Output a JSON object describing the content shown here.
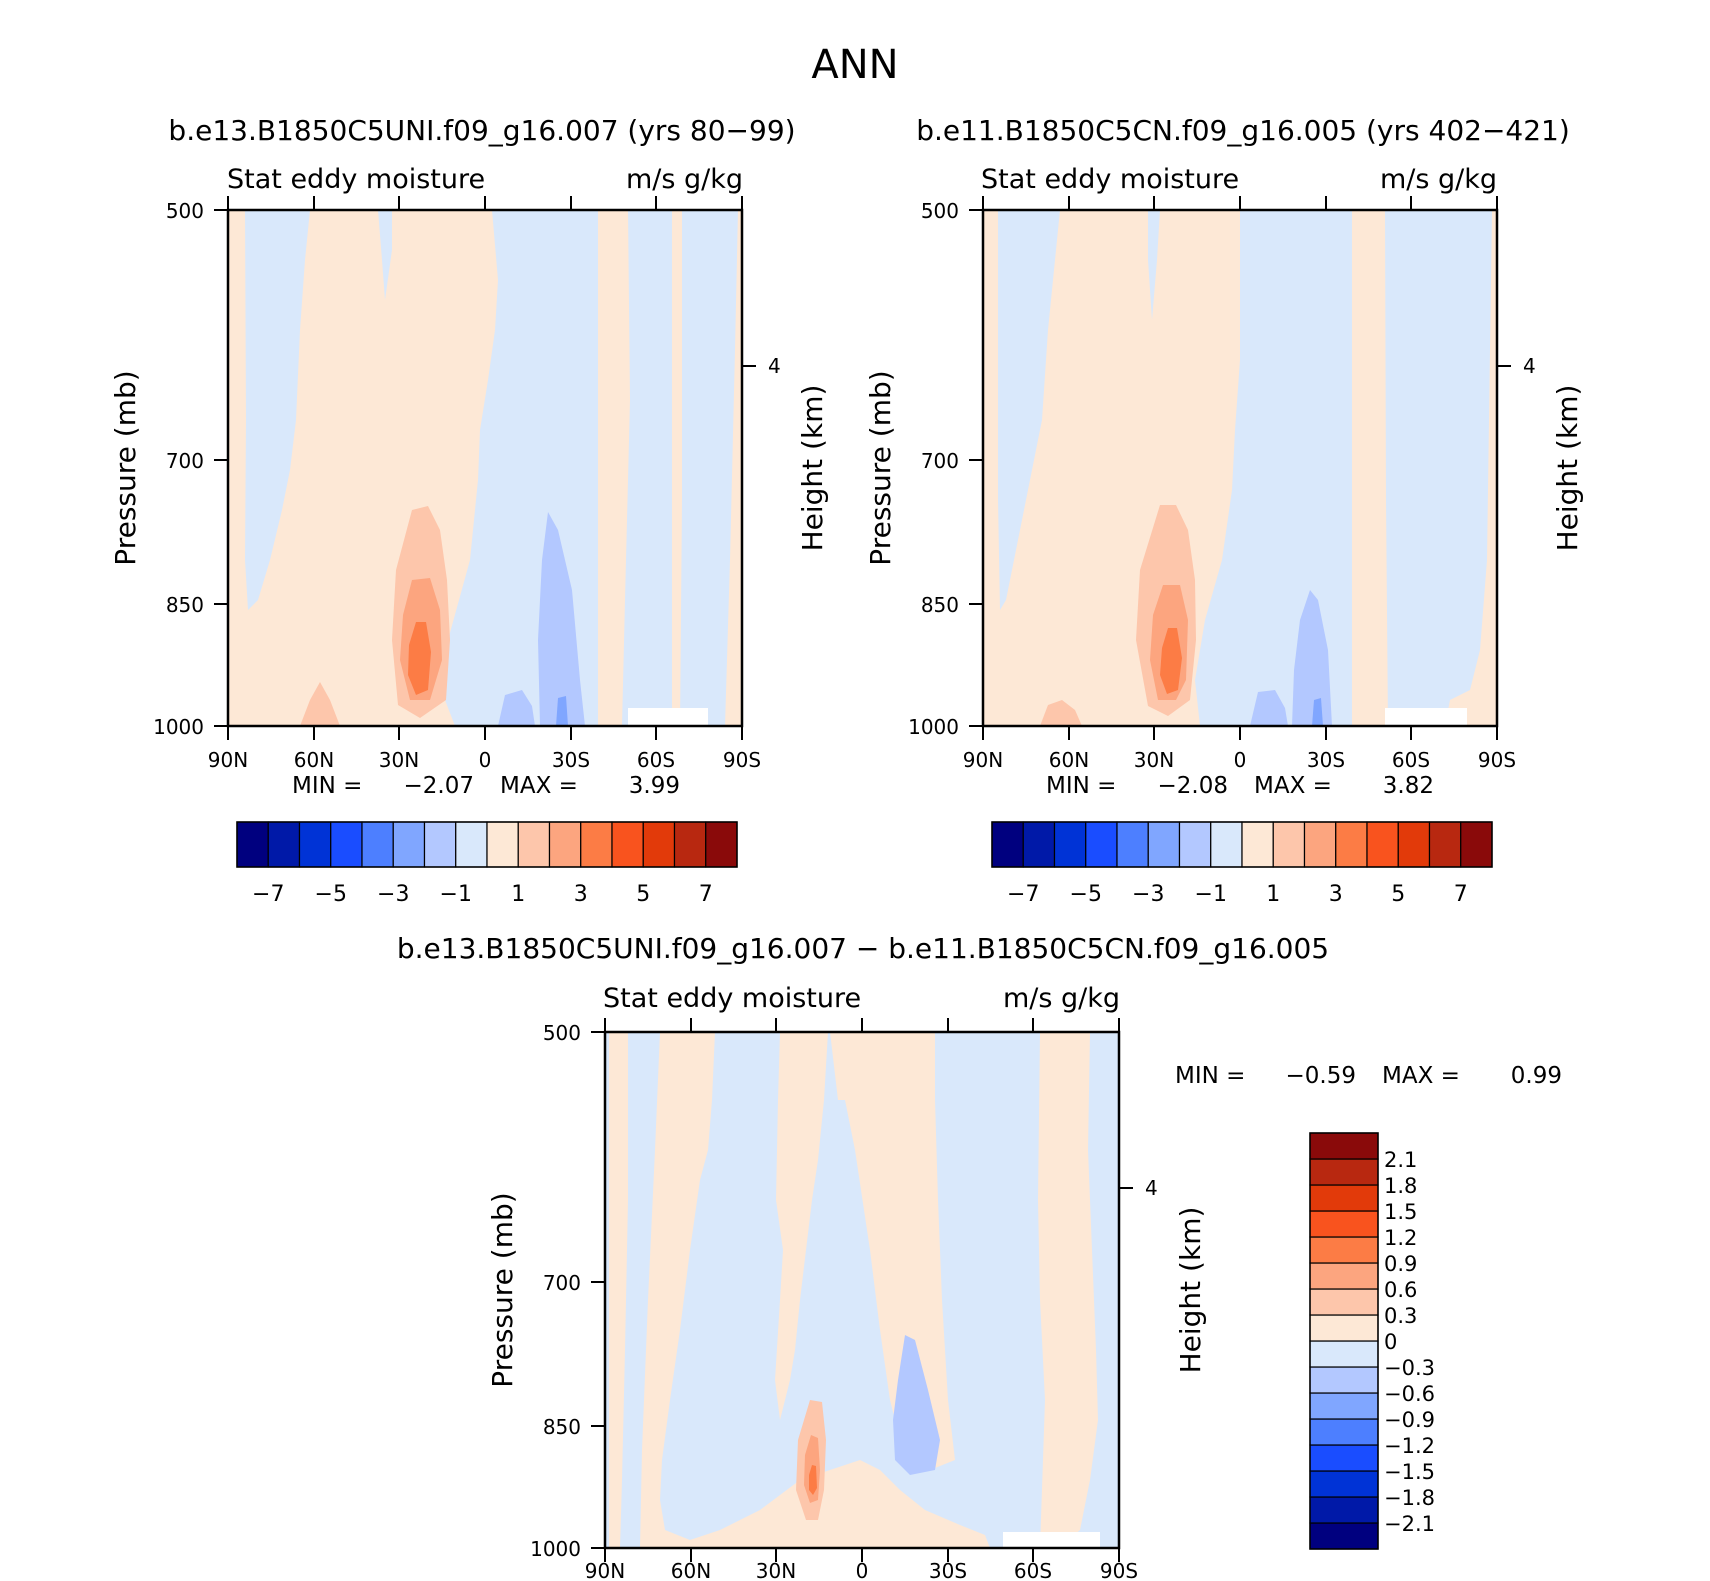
{
  "figure": {
    "title": "ANN"
  },
  "chart_data": [
    {
      "type": "heatmap",
      "title": "b.e13.B1850C5UNI.f09_g16.007 (yrs 80−99)",
      "left_label": "Stat eddy moisture",
      "right_label": "m/s g/kg",
      "xlabel": "",
      "ylabel": "Pressure (mb)",
      "ylabel_right": "Height (km)",
      "x_ticks": [
        "90N",
        "60N",
        "30N",
        "0",
        "30S",
        "60S",
        "90S"
      ],
      "y_ticks": [
        "500",
        "700",
        "850",
        "1000"
      ],
      "y_ticks_right": [
        "4"
      ],
      "xlim": [
        90,
        -90
      ],
      "ylim": [
        1000,
        500
      ],
      "min_text": "MIN =",
      "min_value": "−2.07",
      "max_text": "MAX =",
      "max_value": "3.99",
      "colorbar": {
        "orientation": "horizontal",
        "levels": [
          -7,
          -6,
          -5,
          -4,
          -3,
          -2,
          -1,
          0,
          1,
          2,
          3,
          4,
          5,
          6,
          7
        ],
        "tick_labels": [
          "−7",
          "−5",
          "−3",
          "−1",
          "1",
          "3",
          "5",
          "7"
        ],
        "colors": [
          "#00007f",
          "#0019a8",
          "#0033d6",
          "#1a4dff",
          "#4d7fff",
          "#80a6ff",
          "#b3c8ff",
          "#d9e8fb",
          "#fde8d6",
          "#fdc6ab",
          "#fca57f",
          "#fc7c45",
          "#f9531e",
          "#e23a0a",
          "#b82810",
          "#8a0a0a"
        ]
      },
      "features": [
        {
          "label": "positive maximum",
          "lat": 22,
          "p": 920,
          "value": 3.99
        },
        {
          "label": "negative minimum",
          "lat": -22,
          "p": 985,
          "value": -2.07
        }
      ]
    },
    {
      "type": "heatmap",
      "title": "b.e11.B1850C5CN.f09_g16.005 (yrs 402−421)",
      "left_label": "Stat eddy moisture",
      "right_label": "m/s g/kg",
      "xlabel": "",
      "ylabel": "Pressure (mb)",
      "ylabel_right": "Height (km)",
      "x_ticks": [
        "90N",
        "60N",
        "30N",
        "0",
        "30S",
        "60S",
        "90S"
      ],
      "y_ticks": [
        "500",
        "700",
        "850",
        "1000"
      ],
      "y_ticks_right": [
        "4"
      ],
      "xlim": [
        90,
        -90
      ],
      "ylim": [
        1000,
        500
      ],
      "min_text": "MIN =",
      "min_value": "−2.08",
      "max_text": "MAX =",
      "max_value": "3.82",
      "colorbar": {
        "orientation": "horizontal",
        "levels": [
          -7,
          -6,
          -5,
          -4,
          -3,
          -2,
          -1,
          0,
          1,
          2,
          3,
          4,
          5,
          6,
          7
        ],
        "tick_labels": [
          "−7",
          "−5",
          "−3",
          "−1",
          "1",
          "3",
          "5",
          "7"
        ],
        "colors": [
          "#00007f",
          "#0019a8",
          "#0033d6",
          "#1a4dff",
          "#4d7fff",
          "#80a6ff",
          "#b3c8ff",
          "#d9e8fb",
          "#fde8d6",
          "#fdc6ab",
          "#fca57f",
          "#fc7c45",
          "#f9531e",
          "#e23a0a",
          "#b82810",
          "#8a0a0a"
        ]
      },
      "features": [
        {
          "label": "positive maximum",
          "lat": 27,
          "p": 920,
          "value": 3.82
        },
        {
          "label": "negative minimum",
          "lat": -24,
          "p": 975,
          "value": -2.08
        }
      ]
    },
    {
      "type": "heatmap",
      "title": "b.e13.B1850C5UNI.f09_g16.007 − b.e11.B1850C5CN.f09_g16.005",
      "left_label": "Stat eddy moisture",
      "right_label": "m/s g/kg",
      "xlabel": "",
      "ylabel": "Pressure (mb)",
      "ylabel_right": "Height (km)",
      "x_ticks": [
        "90N",
        "60N",
        "30N",
        "0",
        "30S",
        "60S",
        "90S"
      ],
      "y_ticks": [
        "500",
        "700",
        "850",
        "1000"
      ],
      "y_ticks_right": [
        "4"
      ],
      "xlim": [
        90,
        -90
      ],
      "ylim": [
        1000,
        500
      ],
      "min_text": "MIN =",
      "min_value": "−0.59",
      "max_text": "MAX =",
      "max_value": "0.99",
      "colorbar": {
        "orientation": "vertical",
        "levels": [
          -2.1,
          -1.8,
          -1.5,
          -1.2,
          -0.9,
          -0.6,
          -0.3,
          0,
          0.3,
          0.6,
          0.9,
          1.2,
          1.5,
          1.8,
          2.1
        ],
        "tick_labels": [
          "−2.1",
          "−1.8",
          "−1.5",
          "−1.2",
          "−0.9",
          "−0.6",
          "−0.3",
          "0",
          "0.3",
          "0.6",
          "0.9",
          "1.2",
          "1.5",
          "1.8",
          "2.1"
        ],
        "colors": [
          "#00007f",
          "#0019a8",
          "#0033d6",
          "#1a4dff",
          "#4d7fff",
          "#80a6ff",
          "#b3c8ff",
          "#d9e8fb",
          "#fde8d6",
          "#fdc6ab",
          "#fca57f",
          "#fc7c45",
          "#f9531e",
          "#e23a0a",
          "#b82810",
          "#8a0a0a"
        ]
      },
      "features": [
        {
          "label": "positive maximum",
          "lat": 18,
          "p": 910,
          "value": 0.99
        },
        {
          "label": "negative minimum",
          "lat": -12,
          "p": 880,
          "value": -0.59
        }
      ]
    }
  ]
}
